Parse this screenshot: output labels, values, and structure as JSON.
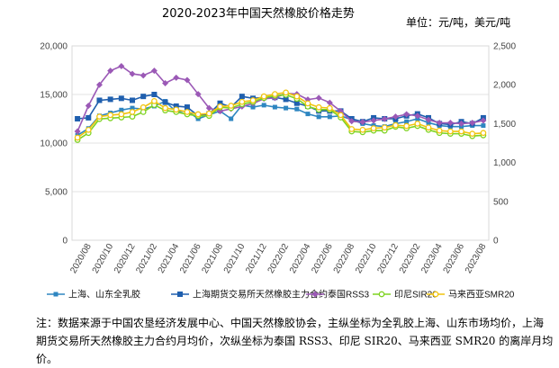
{
  "header": {
    "title": "2020-2023年中国天然橡胶价格走势",
    "unit": "单位：元/吨，美元/吨"
  },
  "note": "注：数据来源于中国农垦经济发展中心、中国天然橡胶协会，主纵坐标为全乳胶上海、山东市场均价，上海期货交易所天然橡胶主力合约月均价，次纵坐标为泰国 RSS3、印尼 SIR20、马来西亚 SMR20 的离岸月均价。",
  "chart_data": {
    "type": "line",
    "x": [
      "2020/07",
      "2020/08",
      "2020/09",
      "2020/10",
      "2020/11",
      "2020/12",
      "2021/01",
      "2021/02",
      "2021/03",
      "2021/04",
      "2021/05",
      "2021/06",
      "2021/07",
      "2021/08",
      "2021/09",
      "2021/10",
      "2021/11",
      "2021/12",
      "2021/01",
      "2022/02",
      "2022/03",
      "2022/04",
      "2022/05",
      "2022/06",
      "2022/07",
      "2022/08",
      "2022/09",
      "2022/10",
      "2022/11",
      "2022/12",
      "2023/01",
      "2023/02",
      "2023/03",
      "2023/04",
      "2023/05",
      "2023/06",
      "2023/07",
      "2023/08"
    ],
    "x_tick_labels": [
      "2020/08",
      "2020/10",
      "2020/12",
      "2021/02",
      "2021/04",
      "2021/06",
      "2021/08",
      "2021/10",
      "2021/12",
      "2022/02",
      "2022/04",
      "2022/06",
      "2022/08",
      "2022/10",
      "2022/12",
      "2023/02",
      "2023/04",
      "2023/06",
      "2023/08"
    ],
    "y_left": {
      "lim": [
        0,
        20000
      ],
      "ticks": [
        "0",
        "5,000",
        "10,000",
        "15,000",
        "20,000"
      ]
    },
    "y_right": {
      "lim": [
        0,
        2500
      ],
      "ticks": [
        "0",
        "500",
        "1,000",
        "1,500",
        "2,000",
        "2,500"
      ]
    },
    "series": [
      {
        "name": "上海、山东全乳胶",
        "axis": "left",
        "color": "#2e86c1",
        "marker": "square",
        "values": [
          10800,
          11500,
          12800,
          13100,
          13400,
          13600,
          13500,
          13800,
          14300,
          13200,
          13300,
          12500,
          12900,
          13300,
          12500,
          13900,
          13700,
          13900,
          13700,
          13600,
          13500,
          13000,
          12700,
          12700,
          12800,
          12400,
          12000,
          11800,
          11700,
          12000,
          12200,
          12500,
          12100,
          11800,
          11700,
          11700,
          11800,
          11800
        ]
      },
      {
        "name": "上海期货交易所天然橡胶主力合约",
        "axis": "left",
        "color": "#1f5fae",
        "marker": "square-filled",
        "values": [
          12500,
          12600,
          14400,
          14500,
          14600,
          14400,
          14800,
          15000,
          14200,
          13800,
          13700,
          12800,
          13000,
          14100,
          13700,
          14800,
          14600,
          14700,
          14700,
          14500,
          14100,
          13800,
          13300,
          13300,
          13300,
          12500,
          12200,
          12600,
          12500,
          12500,
          12800,
          13000,
          12600,
          12000,
          11900,
          12200,
          12000,
          12600
        ]
      },
      {
        "name": "泰国RSS3",
        "axis": "right",
        "color": "#9b59b6",
        "marker": "diamond",
        "values": [
          1400,
          1730,
          2000,
          2180,
          2240,
          2140,
          2120,
          2180,
          2020,
          2090,
          2060,
          1880,
          1700,
          1660,
          1690,
          1720,
          1760,
          1820,
          1830,
          1890,
          1880,
          1810,
          1830,
          1770,
          1660,
          1530,
          1520,
          1540,
          1560,
          1590,
          1620,
          1600,
          1550,
          1510,
          1510,
          1500,
          1510,
          1540
        ]
      },
      {
        "name": "印尼SIR20",
        "axis": "right",
        "color": "#7ed321",
        "marker": "circle",
        "values": [
          1290,
          1380,
          1560,
          1570,
          1580,
          1590,
          1650,
          1740,
          1670,
          1650,
          1620,
          1600,
          1600,
          1710,
          1700,
          1750,
          1780,
          1830,
          1860,
          1870,
          1820,
          1720,
          1680,
          1680,
          1580,
          1400,
          1390,
          1410,
          1410,
          1460,
          1440,
          1470,
          1420,
          1380,
          1370,
          1370,
          1340,
          1350
        ]
      },
      {
        "name": "马来西亚SMR20",
        "axis": "right",
        "color": "#f1c40f",
        "marker": "circle",
        "values": [
          1320,
          1420,
          1590,
          1610,
          1620,
          1650,
          1710,
          1790,
          1700,
          1680,
          1650,
          1620,
          1630,
          1720,
          1730,
          1780,
          1800,
          1850,
          1880,
          1900,
          1850,
          1760,
          1710,
          1700,
          1610,
          1430,
          1420,
          1440,
          1450,
          1480,
          1470,
          1500,
          1450,
          1410,
          1400,
          1400,
          1370,
          1380
        ]
      }
    ]
  }
}
